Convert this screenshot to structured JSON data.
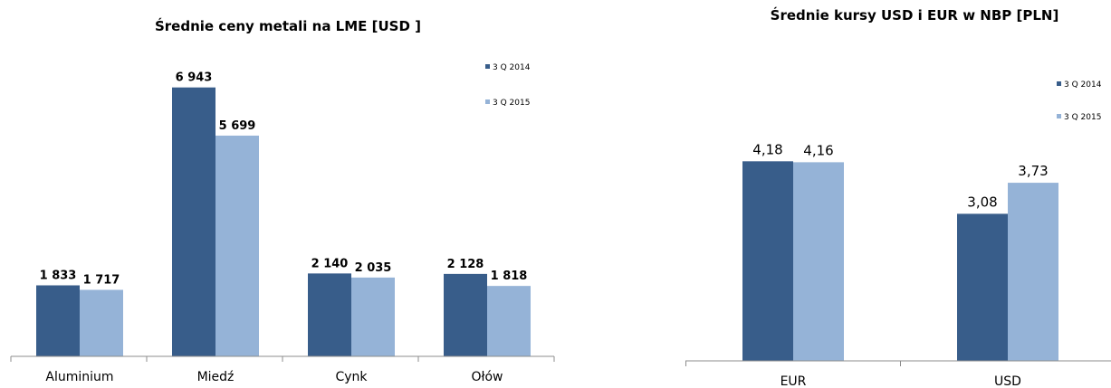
{
  "colors": {
    "series1": "#385d8a",
    "series2": "#95b3d7",
    "axis": "#8c8c8c"
  },
  "chart_data": [
    {
      "type": "bar",
      "title": "Średnie ceny metali na LME [USD ]",
      "categories": [
        "Aluminium",
        "Miedź",
        "Cynk",
        "Ołów"
      ],
      "series": [
        {
          "name": "3 Q 2014",
          "values": [
            1833,
            6943,
            2140,
            2128
          ],
          "labels": [
            "1 833",
            "6 943",
            "2 140",
            "2 128"
          ]
        },
        {
          "name": "3 Q 2015",
          "values": [
            1717,
            5699,
            2035,
            1818
          ],
          "labels": [
            "1 717",
            "5 699",
            "2 035",
            "1 818"
          ]
        }
      ],
      "ylim": [
        0,
        8500
      ],
      "grid": false,
      "legend": "top-right"
    },
    {
      "type": "bar",
      "title": "Średnie kursy USD i EUR w NBP [PLN]",
      "categories": [
        "EUR",
        "USD"
      ],
      "series": [
        {
          "name": "3 Q 2014",
          "values": [
            4.18,
            3.08
          ],
          "labels": [
            "4,18",
            "3,08"
          ]
        },
        {
          "name": "3 Q 2015",
          "values": [
            4.16,
            3.73
          ],
          "labels": [
            "4,16",
            "3,73"
          ]
        }
      ],
      "ylim": [
        0,
        6.8
      ],
      "grid": false,
      "legend": "top-right"
    }
  ]
}
